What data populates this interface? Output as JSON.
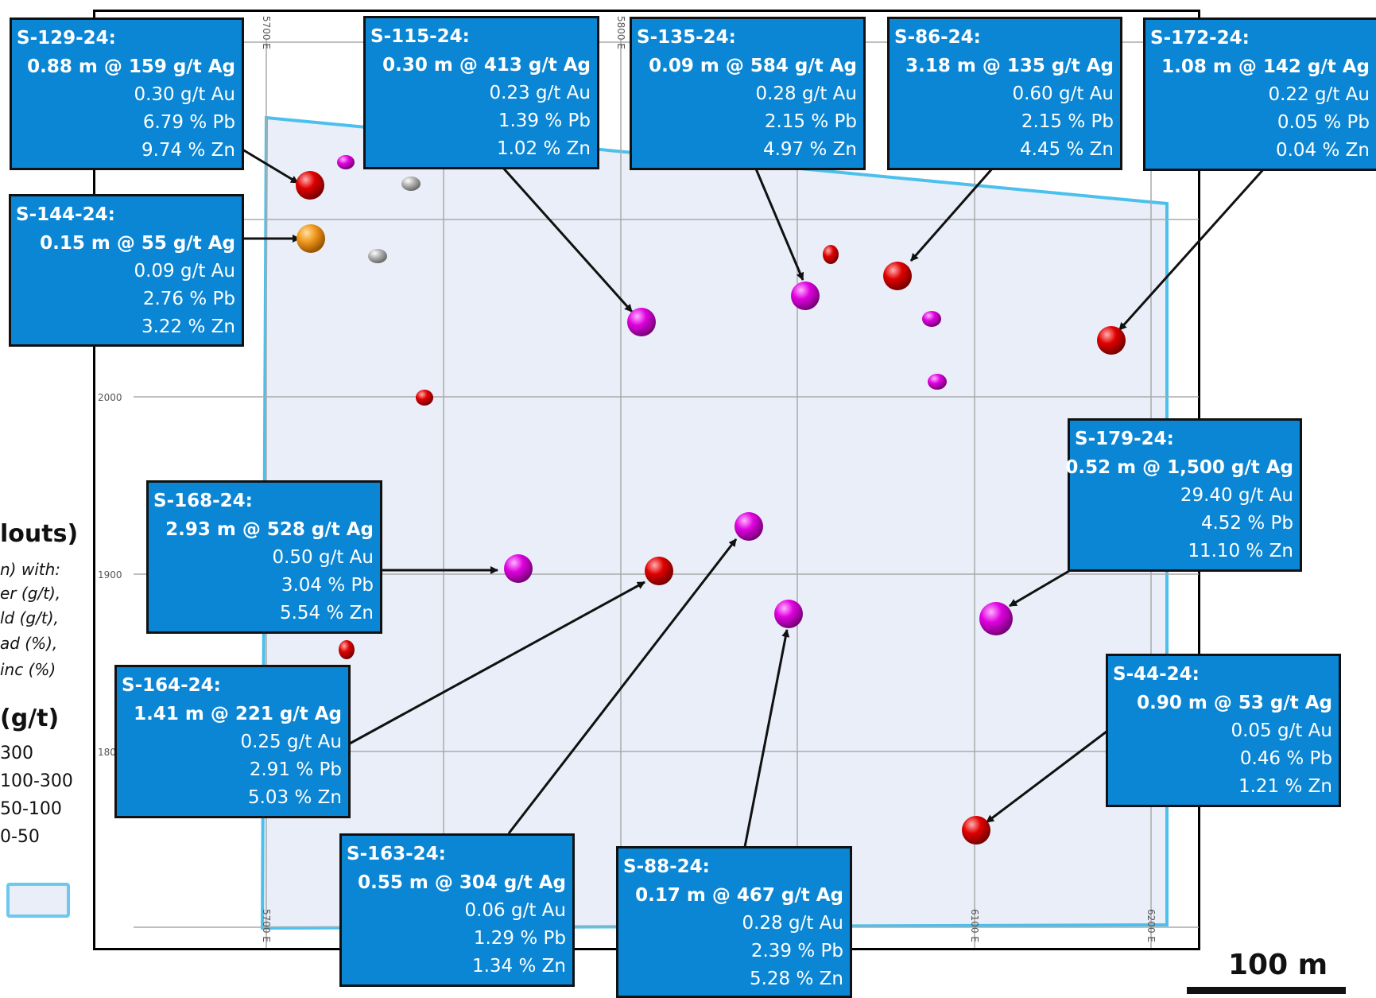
{
  "grid": {
    "northing_labels": [
      "2000",
      "1900",
      "180"
    ],
    "easting_labels_top": [
      "5700 E",
      "5800 E"
    ],
    "easting_labels_bottom": [
      "5700 E",
      "6100 E",
      "6200 E"
    ]
  },
  "legend": {
    "title": "louts)",
    "subtitle_lines": [
      "n) with:",
      "er (g/t),",
      "ld (g/t),",
      "ad (%),",
      "inc (%)"
    ],
    "silver_header": "(g/t)",
    "classes": [
      {
        "label": "300",
        "color": "#d100d1"
      },
      {
        "label": "100-300",
        "color": "#e00000"
      },
      {
        "label": "50-100",
        "color": "#f29a1e"
      },
      {
        "label": "0-50",
        "color": "#a8a8a8"
      }
    ],
    "area_fill": "#e9eef8",
    "area_border": "#4cc0ec"
  },
  "scale_bar": {
    "label": "100 m"
  },
  "colors": {
    "callout_fill": "#0b86d4",
    "grid_line": "#aaaaaa",
    "area_fill": "#e9eef8",
    "area_outline": "#4cc0ec"
  },
  "callouts": [
    {
      "id": "S-129-24:",
      "ag": "0.88 m @ 159 g/t Ag",
      "au": "0.30 g/t Au",
      "pb": "6.79 % Pb",
      "zn": "9.74 % Zn",
      "class": "100-300"
    },
    {
      "id": "S-115-24:",
      "ag": "0.30 m @ 413 g/t Ag",
      "au": "0.23 g/t Au",
      "pb": "1.39 % Pb",
      "zn": "1.02 % Zn",
      "class": "300"
    },
    {
      "id": "S-135-24:",
      "ag": "0.09 m @ 584 g/t Ag",
      "au": "0.28 g/t Au",
      "pb": "2.15 % Pb",
      "zn": "4.97 % Zn",
      "class": "300"
    },
    {
      "id": "S-86-24:",
      "ag": "3.18 m @ 135 g/t Ag",
      "au": "0.60 g/t Au",
      "pb": "2.15 % Pb",
      "zn": "4.45 % Zn",
      "class": "100-300"
    },
    {
      "id": "S-172-24:",
      "ag": "1.08 m @ 142 g/t Ag",
      "au": "0.22 g/t Au",
      "pb": "0.05 % Pb",
      "zn": "0.04 % Zn",
      "class": "100-300"
    },
    {
      "id": "S-144-24:",
      "ag": "0.15 m @ 55 g/t Ag",
      "au": "0.09 g/t Au",
      "pb": "2.76 % Pb",
      "zn": "3.22 % Zn",
      "class": "50-100"
    },
    {
      "id": "S-179-24:",
      "ag": "0.52 m @ 1,500 g/t Ag",
      "au": "29.40 g/t Au",
      "pb": "4.52 % Pb",
      "zn": "11.10 % Zn",
      "class": "300"
    },
    {
      "id": "S-168-24:",
      "ag": "2.93 m @ 528 g/t Ag",
      "au": "0.50 g/t Au",
      "pb": "3.04 % Pb",
      "zn": "5.54 % Zn",
      "class": "300"
    },
    {
      "id": "S-164-24:",
      "ag": "1.41 m @ 221 g/t Ag",
      "au": "0.25 g/t Au",
      "pb": "2.91 % Pb",
      "zn": "5.03 % Zn",
      "class": "100-300"
    },
    {
      "id": "S-44-24:",
      "ag": "0.90 m @ 53 g/t Ag",
      "au": "0.05 g/t Au",
      "pb": "0.46 % Pb",
      "zn": "1.21 % Zn",
      "class": "50-100"
    },
    {
      "id": "S-163-24:",
      "ag": "0.55 m @ 304 g/t Ag",
      "au": "0.06 g/t Au",
      "pb": "1.29 % Pb",
      "zn": "1.34 % Zn",
      "class": "300"
    },
    {
      "id": "S-88-24:",
      "ag": "0.17 m @ 467 g/t Ag",
      "au": "0.28 g/t Au",
      "pb": "2.39 % Pb",
      "zn": "5.28 % Zn",
      "class": "300"
    }
  ]
}
